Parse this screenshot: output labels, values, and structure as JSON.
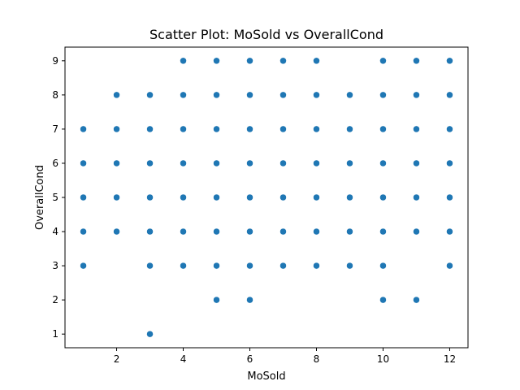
{
  "chart_data": {
    "type": "scatter",
    "title": "Scatter Plot: MoSold vs OverallCond",
    "xlabel": "MoSold",
    "ylabel": "OverallCond",
    "xlim": [
      0.45,
      12.55
    ],
    "ylim": [
      0.6,
      9.4
    ],
    "xticks": [
      2,
      4,
      6,
      8,
      10,
      12
    ],
    "yticks": [
      1,
      2,
      3,
      4,
      5,
      6,
      7,
      8,
      9
    ],
    "grid": false,
    "legend": "none",
    "point_color": "#1f77b4",
    "points": [
      [
        1,
        3
      ],
      [
        1,
        4
      ],
      [
        1,
        5
      ],
      [
        1,
        6
      ],
      [
        1,
        7
      ],
      [
        2,
        4
      ],
      [
        2,
        5
      ],
      [
        2,
        6
      ],
      [
        2,
        7
      ],
      [
        2,
        8
      ],
      [
        3,
        1
      ],
      [
        3,
        3
      ],
      [
        3,
        4
      ],
      [
        3,
        5
      ],
      [
        3,
        6
      ],
      [
        3,
        7
      ],
      [
        3,
        8
      ],
      [
        4,
        3
      ],
      [
        4,
        4
      ],
      [
        4,
        5
      ],
      [
        4,
        6
      ],
      [
        4,
        7
      ],
      [
        4,
        8
      ],
      [
        4,
        9
      ],
      [
        5,
        2
      ],
      [
        5,
        3
      ],
      [
        5,
        4
      ],
      [
        5,
        5
      ],
      [
        5,
        6
      ],
      [
        5,
        7
      ],
      [
        5,
        8
      ],
      [
        5,
        9
      ],
      [
        6,
        2
      ],
      [
        6,
        3
      ],
      [
        6,
        4
      ],
      [
        6,
        5
      ],
      [
        6,
        6
      ],
      [
        6,
        7
      ],
      [
        6,
        8
      ],
      [
        6,
        9
      ],
      [
        7,
        3
      ],
      [
        7,
        4
      ],
      [
        7,
        5
      ],
      [
        7,
        6
      ],
      [
        7,
        7
      ],
      [
        7,
        8
      ],
      [
        7,
        9
      ],
      [
        8,
        3
      ],
      [
        8,
        4
      ],
      [
        8,
        5
      ],
      [
        8,
        6
      ],
      [
        8,
        7
      ],
      [
        8,
        8
      ],
      [
        8,
        9
      ],
      [
        9,
        3
      ],
      [
        9,
        4
      ],
      [
        9,
        5
      ],
      [
        9,
        6
      ],
      [
        9,
        7
      ],
      [
        9,
        8
      ],
      [
        10,
        2
      ],
      [
        10,
        3
      ],
      [
        10,
        4
      ],
      [
        10,
        5
      ],
      [
        10,
        6
      ],
      [
        10,
        7
      ],
      [
        10,
        8
      ],
      [
        10,
        9
      ],
      [
        11,
        2
      ],
      [
        11,
        4
      ],
      [
        11,
        5
      ],
      [
        11,
        6
      ],
      [
        11,
        7
      ],
      [
        11,
        8
      ],
      [
        11,
        9
      ],
      [
        12,
        3
      ],
      [
        12,
        4
      ],
      [
        12,
        5
      ],
      [
        12,
        6
      ],
      [
        12,
        7
      ],
      [
        12,
        8
      ],
      [
        12,
        9
      ]
    ]
  }
}
